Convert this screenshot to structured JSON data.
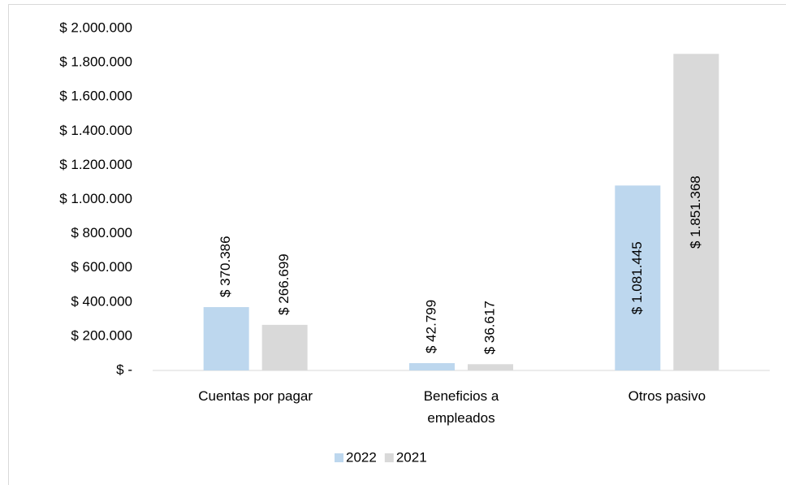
{
  "chart_data": {
    "type": "bar",
    "categories": [
      "Cuentas por pagar",
      "Beneficios a empleados",
      "Otros pasivo"
    ],
    "series": [
      {
        "name": "2022",
        "color": "#bdd7ee",
        "values": [
          370386,
          42799,
          1081445
        ],
        "value_labels": [
          "$ 370.386",
          "$ 42.799",
          "$ 1.081.445"
        ]
      },
      {
        "name": "2021",
        "color": "#d9d9d9",
        "values": [
          266699,
          36617,
          1851368
        ],
        "value_labels": [
          "$ 266.699",
          "$ 36.617",
          "$ 1.851.368"
        ]
      }
    ],
    "ylim": [
      0,
      2000000
    ],
    "yticks": [
      {
        "value": 0,
        "label": "$ -"
      },
      {
        "value": 200000,
        "label": "$ 200.000"
      },
      {
        "value": 400000,
        "label": "$ 400.000"
      },
      {
        "value": 600000,
        "label": "$ 600.000"
      },
      {
        "value": 800000,
        "label": "$ 800.000"
      },
      {
        "value": 1000000,
        "label": "$ 1.000.000"
      },
      {
        "value": 1200000,
        "label": "$ 1.200.000"
      },
      {
        "value": 1400000,
        "label": "$ 1.400.000"
      },
      {
        "value": 1600000,
        "label": "$ 1.600.000"
      },
      {
        "value": 1800000,
        "label": "$ 1.800.000"
      },
      {
        "value": 2000000,
        "label": "$ 2.000.000"
      }
    ],
    "grid": false,
    "legend": "bottom"
  }
}
